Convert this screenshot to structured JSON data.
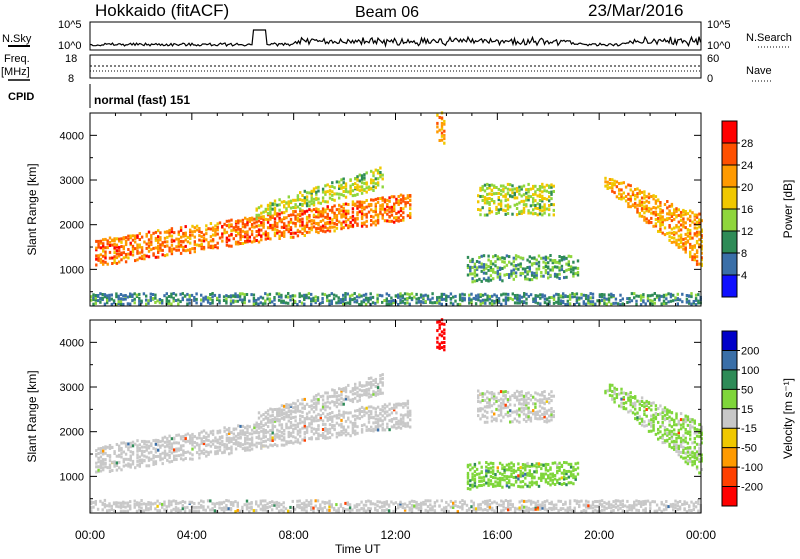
{
  "header": {
    "station": "Hokkaido (fitACF)",
    "beam": "Beam 06",
    "date": "23/Mar/2016"
  },
  "top_panels": {
    "nsky_label": "N.Sky",
    "nsky_tick_top": "10^5",
    "nsky_tick_bottom": "10^0",
    "nsearch_label": "N.Search",
    "nsearch_tick_top": "10^5",
    "nsearch_tick_bottom": "10^0",
    "freq_label_1": "Freq.",
    "freq_label_2": "[MHz]",
    "freq_tick_top": "18",
    "freq_tick_bottom": "8",
    "nave_label": "Nave",
    "nave_tick_top": "60",
    "nave_tick_bottom": "0",
    "cpid_label": "CPID",
    "cpid_value": "normal (fast) 151"
  },
  "axes": {
    "ylabel": "Slant Range [km]",
    "xlabel": "Time UT",
    "yticks": [
      "1000",
      "2000",
      "3000",
      "4000"
    ],
    "xticks": [
      "00:00",
      "04:00",
      "08:00",
      "12:00",
      "16:00",
      "20:00",
      "00:00"
    ]
  },
  "power_scale": {
    "label": "Power [dB]",
    "ticks": [
      "28",
      "24",
      "20",
      "16",
      "12",
      "8",
      "4"
    ],
    "colors": [
      "#ff0000",
      "#ff5000",
      "#ff9a00",
      "#f0c800",
      "#8fd63c",
      "#2e8b57",
      "#3a6fa8",
      "#1010ff"
    ]
  },
  "velocity_scale": {
    "label": "Velocity [m s⁻¹]",
    "ticks": [
      "200",
      "100",
      "50",
      "15",
      "-15",
      "-50",
      "-100",
      "-200"
    ],
    "colors": [
      "#0000c8",
      "#3a6fa8",
      "#2e8b57",
      "#7fd63a",
      "#c8c8c8",
      "#f0c800",
      "#ff9a00",
      "#ff4000",
      "#ff0000"
    ]
  },
  "chart_data": {
    "type": "heatmap",
    "x_range_hours": [
      0,
      24
    ],
    "y_range_km": [
      180,
      4500
    ],
    "echo_regions": [
      {
        "name": "main_band",
        "t_start": 0.2,
        "t_end": 12.6,
        "r_low_start": 1050,
        "r_low_end": 2100,
        "r_high_start": 1650,
        "r_high_end": 2700,
        "power_db": 27,
        "velocity_ms": 0
      },
      {
        "name": "upper_streaks",
        "t_start": 6.5,
        "t_end": 11.5,
        "r_low_start": 2100,
        "r_low_end": 2800,
        "r_high_start": 2400,
        "r_high_end": 3300,
        "power_db": 18,
        "velocity_ms": 0
      },
      {
        "name": "afternoon_patch_a",
        "t_start": 15.2,
        "t_end": 18.2,
        "r_low_start": 2200,
        "r_low_end": 2200,
        "r_high_start": 2900,
        "r_high_end": 2900,
        "power_db": 18,
        "velocity_ms": 5
      },
      {
        "name": "afternoon_arc",
        "t_start": 14.8,
        "t_end": 19.2,
        "r_low_start": 700,
        "r_low_end": 800,
        "r_high_start": 1300,
        "r_high_end": 1300,
        "power_db": 14,
        "velocity_ms": 40
      },
      {
        "name": "evening_band",
        "t_start": 20.2,
        "t_end": 24,
        "r_low_start": 2800,
        "r_low_end": 1000,
        "r_high_start": 3100,
        "r_high_end": 2200,
        "power_db": 24,
        "velocity_ms": 20
      },
      {
        "name": "near_range_clutter",
        "t_start": 0,
        "t_end": 24,
        "r_low_start": 200,
        "r_low_end": 200,
        "r_high_start": 450,
        "r_high_end": 450,
        "power_db": 12,
        "velocity_ms": 0
      },
      {
        "name": "meteor_spike",
        "t_start": 13.6,
        "t_end": 13.9,
        "r_low_start": 3800,
        "r_low_end": 3800,
        "r_high_start": 4500,
        "r_high_end": 4500,
        "power_db": 24,
        "velocity_ms": -220
      }
    ]
  }
}
